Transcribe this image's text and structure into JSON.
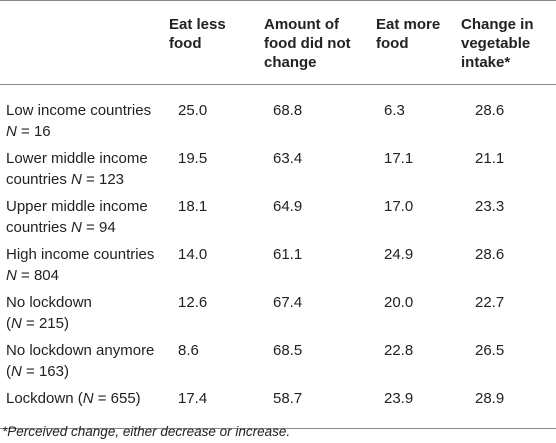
{
  "headers": [
    "",
    "Eat less food",
    "Amount of food did not change",
    "Eat more food",
    "Change in vegetable intake*"
  ],
  "rows": [
    {
      "line1": "Low income countries",
      "line2_pre": "",
      "line2_n": "N",
      "line2_post": " = 16",
      "values": [
        "25.0",
        "68.8",
        "6.3",
        "28.6"
      ]
    },
    {
      "line1": "Lower middle income",
      "line2_pre": "countries ",
      "line2_n": "N",
      "line2_post": " = 123",
      "values": [
        "19.5",
        "63.4",
        "17.1",
        "21.1"
      ]
    },
    {
      "line1": "Upper middle income",
      "line2_pre": "countries ",
      "line2_n": "N",
      "line2_post": " = 94",
      "values": [
        "18.1",
        "64.9",
        "17.0",
        "23.3"
      ]
    },
    {
      "line1": "High income countries",
      "line2_pre": "",
      "line2_n": "N",
      "line2_post": " = 804",
      "values": [
        "14.0",
        "61.1",
        "24.9",
        "28.6"
      ]
    },
    {
      "line1": "No lockdown",
      "line2_pre": "(",
      "line2_n": "N",
      "line2_post": " = 215)",
      "values": [
        "12.6",
        "67.4",
        "20.0",
        "22.7"
      ]
    },
    {
      "line1": "No lockdown anymore",
      "line2_pre": "(",
      "line2_n": "N",
      "line2_post": " = 163)",
      "values": [
        "8.6",
        "68.5",
        "22.8",
        "26.5"
      ]
    },
    {
      "line1": "Lockdown (",
      "line1_n": "N",
      "line1_post": " = 655)",
      "values": [
        "17.4",
        "58.7",
        "23.9",
        "28.9"
      ]
    }
  ],
  "footnote": "*Perceived change, either decrease or increase."
}
